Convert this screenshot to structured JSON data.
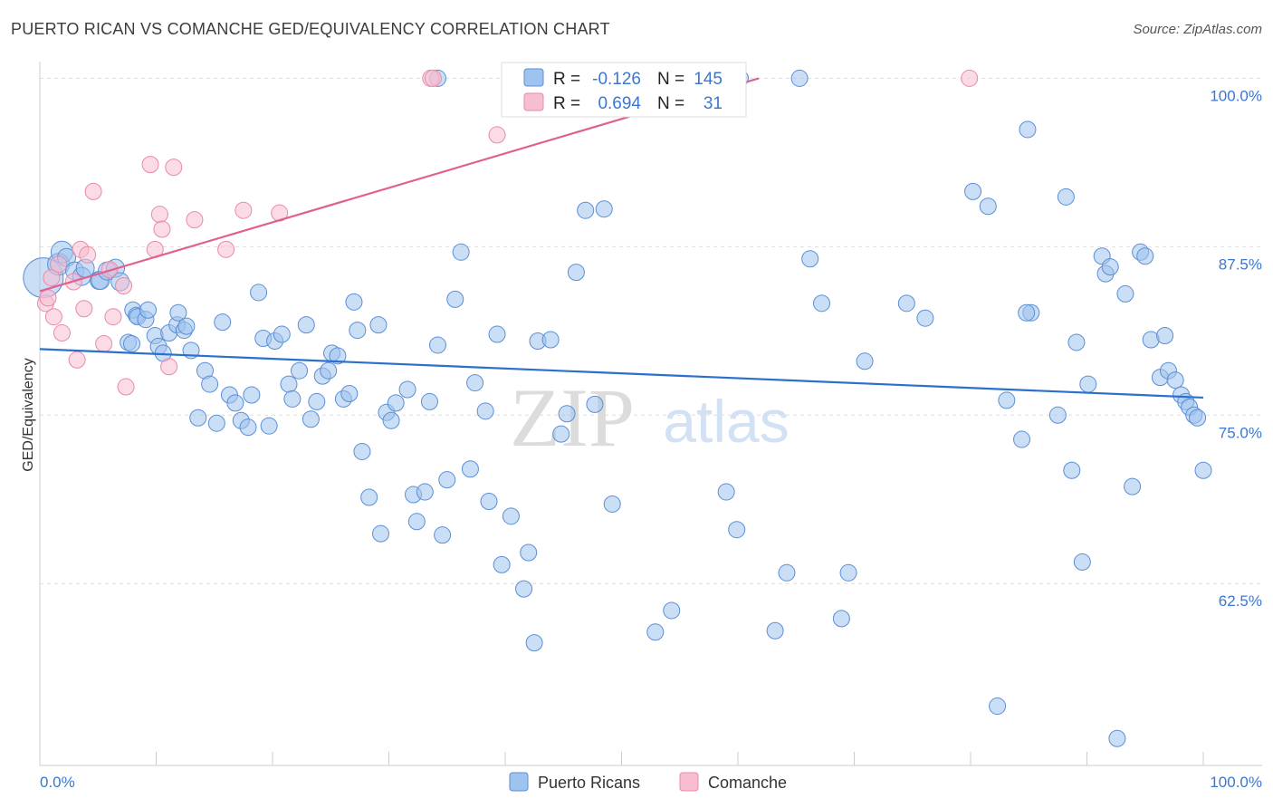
{
  "header": {
    "title": "PUERTO RICAN VS COMANCHE GED/EQUIVALENCY CORRELATION CHART",
    "source": "Source: ZipAtlas.com"
  },
  "watermark": {
    "zip": "ZIP",
    "atlas": "atlas"
  },
  "legend_box": {
    "rows": [
      {
        "r_label": "R =",
        "r_value": "-0.126",
        "n_label": "N =",
        "n_value": "145",
        "color": "#9ec3ef",
        "stroke": "#5a8fd6"
      },
      {
        "r_label": "R =",
        "r_value": "0.694",
        "n_label": "N =",
        "n_value": "31",
        "color": "#f7bdd0",
        "stroke": "#e98aa8"
      }
    ]
  },
  "bottom_legend": [
    {
      "label": "Puerto Ricans",
      "color": "#9ec3ef",
      "stroke": "#5a8fd6"
    },
    {
      "label": "Comanche",
      "color": "#f7bdd0",
      "stroke": "#e98aa8"
    }
  ],
  "chart_data": {
    "type": "scatter",
    "title": "PUERTO RICAN VS COMANCHE GED/EQUIVALENCY CORRELATION CHART",
    "xlabel": "",
    "ylabel": "GED/Equivalency",
    "xlim": [
      0,
      100
    ],
    "ylim": [
      49.0,
      100.5
    ],
    "x_tick_labels": [
      "0.0%",
      "100.0%"
    ],
    "y_ticks": [
      {
        "value": 62.5,
        "label": "62.5%"
      },
      {
        "value": 75.0,
        "label": "75.0%"
      },
      {
        "value": 87.5,
        "label": "87.5%"
      },
      {
        "value": 100.0,
        "label": "100.0%"
      }
    ],
    "grid": true,
    "legend_position": "bottom",
    "series": [
      {
        "name": "Puerto Ricans",
        "color": "#9ec3ef",
        "stroke": "#5a8fd6",
        "line_color": "#2c6fcd",
        "trend": [
          [
            0,
            79.9
          ],
          [
            100,
            76.3
          ]
        ],
        "points": [
          [
            0.3,
            85.2,
            22
          ],
          [
            1.6,
            86.2,
            12
          ],
          [
            1.9,
            87.1,
            12
          ],
          [
            2.3,
            86.7,
            10
          ],
          [
            3.0,
            85.7,
            10
          ],
          [
            3.6,
            85.3,
            10
          ],
          [
            3.9,
            85.9,
            10
          ],
          [
            5.1,
            85.0,
            10
          ],
          [
            5.2,
            85.0,
            10
          ],
          [
            5.8,
            85.7,
            10
          ],
          [
            6.5,
            85.9,
            10
          ],
          [
            6.9,
            84.9,
            10
          ],
          [
            7.6,
            80.4,
            9
          ],
          [
            7.9,
            80.3,
            9
          ],
          [
            8.0,
            82.8,
            9
          ],
          [
            8.3,
            82.4,
            9
          ],
          [
            8.4,
            82.3,
            9
          ],
          [
            9.1,
            82.1,
            9
          ],
          [
            9.3,
            82.8,
            9
          ],
          [
            9.9,
            80.9,
            9
          ],
          [
            10.2,
            80.1,
            9
          ],
          [
            10.6,
            79.6,
            9
          ],
          [
            11.1,
            81.1,
            9
          ],
          [
            11.8,
            81.7,
            9
          ],
          [
            11.9,
            82.6,
            9
          ],
          [
            12.4,
            81.3,
            9
          ],
          [
            12.6,
            81.6,
            9
          ],
          [
            13.0,
            79.8,
            9
          ],
          [
            13.6,
            74.8,
            9
          ],
          [
            14.2,
            78.3,
            9
          ],
          [
            14.6,
            77.3,
            9
          ],
          [
            15.2,
            74.4,
            9
          ],
          [
            15.7,
            81.9,
            9
          ],
          [
            16.3,
            76.5,
            9
          ],
          [
            16.8,
            75.9,
            9
          ],
          [
            17.3,
            74.6,
            9
          ],
          [
            17.9,
            74.1,
            9
          ],
          [
            18.2,
            76.5,
            9
          ],
          [
            18.8,
            84.1,
            9
          ],
          [
            19.2,
            80.7,
            9
          ],
          [
            19.7,
            74.2,
            9
          ],
          [
            20.2,
            80.5,
            9
          ],
          [
            20.8,
            81.0,
            9
          ],
          [
            21.4,
            77.3,
            9
          ],
          [
            21.7,
            76.2,
            9
          ],
          [
            22.3,
            78.3,
            9
          ],
          [
            22.9,
            81.7,
            9
          ],
          [
            23.3,
            74.7,
            9
          ],
          [
            23.8,
            76.0,
            9
          ],
          [
            24.3,
            77.9,
            9
          ],
          [
            24.8,
            78.3,
            9
          ],
          [
            25.1,
            79.6,
            9
          ],
          [
            25.6,
            79.4,
            9
          ],
          [
            26.1,
            76.2,
            9
          ],
          [
            26.6,
            76.6,
            9
          ],
          [
            27.0,
            83.4,
            9
          ],
          [
            27.3,
            81.3,
            9
          ],
          [
            27.7,
            72.3,
            9
          ],
          [
            28.3,
            68.9,
            9
          ],
          [
            29.1,
            81.7,
            9
          ],
          [
            29.3,
            66.2,
            9
          ],
          [
            29.8,
            75.2,
            9
          ],
          [
            30.2,
            74.6,
            9
          ],
          [
            30.6,
            75.9,
            9
          ],
          [
            31.6,
            76.9,
            9
          ],
          [
            32.1,
            69.1,
            9
          ],
          [
            32.4,
            67.1,
            9
          ],
          [
            33.1,
            69.3,
            9
          ],
          [
            33.5,
            76.0,
            9
          ],
          [
            34.2,
            80.2,
            9
          ],
          [
            34.6,
            66.1,
            9
          ],
          [
            35.0,
            70.2,
            9
          ],
          [
            35.7,
            83.6,
            9
          ],
          [
            36.2,
            87.1,
            9
          ],
          [
            37.0,
            71.0,
            9
          ],
          [
            37.4,
            77.4,
            9
          ],
          [
            38.3,
            75.3,
            9
          ],
          [
            38.6,
            68.6,
            9
          ],
          [
            39.3,
            81.0,
            9
          ],
          [
            39.7,
            63.9,
            9
          ],
          [
            40.5,
            67.5,
            9
          ],
          [
            41.6,
            62.1,
            9
          ],
          [
            42.0,
            64.8,
            9
          ],
          [
            42.5,
            58.1,
            9
          ],
          [
            42.8,
            80.5,
            9
          ],
          [
            43.9,
            80.6,
            9
          ],
          [
            44.8,
            73.6,
            9
          ],
          [
            45.3,
            75.1,
            9
          ],
          [
            46.1,
            85.6,
            9
          ],
          [
            46.9,
            90.2,
            9
          ],
          [
            47.7,
            75.8,
            9
          ],
          [
            48.5,
            90.3,
            9
          ],
          [
            49.2,
            68.4,
            9
          ],
          [
            52.9,
            58.9,
            9
          ],
          [
            54.3,
            60.5,
            9
          ],
          [
            59.0,
            69.3,
            9
          ],
          [
            59.9,
            66.5,
            9
          ],
          [
            60.2,
            100.0,
            9
          ],
          [
            63.2,
            59.0,
            9
          ],
          [
            64.2,
            63.3,
            9
          ],
          [
            65.3,
            100.0,
            9
          ],
          [
            66.2,
            86.6,
            9
          ],
          [
            67.2,
            83.3,
            9
          ],
          [
            68.9,
            59.9,
            9
          ],
          [
            69.5,
            63.3,
            9
          ],
          [
            70.9,
            79.0,
            9
          ],
          [
            74.5,
            83.3,
            9
          ],
          [
            76.1,
            82.2,
            9
          ],
          [
            80.2,
            91.6,
            9
          ],
          [
            81.5,
            90.5,
            9
          ],
          [
            82.3,
            53.4,
            9
          ],
          [
            83.1,
            76.1,
            9
          ],
          [
            84.4,
            73.2,
            9
          ],
          [
            84.9,
            96.2,
            9
          ],
          [
            85.2,
            82.6,
            9
          ],
          [
            87.5,
            75.0,
            9
          ],
          [
            88.2,
            91.2,
            9
          ],
          [
            88.7,
            70.9,
            9
          ],
          [
            89.1,
            80.4,
            9
          ],
          [
            89.6,
            64.1,
            9
          ],
          [
            90.1,
            77.3,
            9
          ],
          [
            91.3,
            86.8,
            9
          ],
          [
            91.6,
            85.5,
            9
          ],
          [
            92.0,
            86.0,
            9
          ],
          [
            92.6,
            51.0,
            9
          ],
          [
            93.3,
            84.0,
            9
          ],
          [
            93.9,
            69.7,
            9
          ],
          [
            94.6,
            87.1,
            9
          ],
          [
            95.0,
            86.8,
            9
          ],
          [
            95.5,
            80.6,
            9
          ],
          [
            96.3,
            77.8,
            9
          ],
          [
            96.7,
            80.9,
            9
          ],
          [
            97.0,
            78.3,
            9
          ],
          [
            97.6,
            77.6,
            9
          ],
          [
            98.1,
            76.5,
            9
          ],
          [
            98.5,
            76.0,
            9
          ],
          [
            98.8,
            75.6,
            9
          ],
          [
            99.2,
            75.0,
            9
          ],
          [
            99.5,
            74.8,
            9
          ],
          [
            100.0,
            70.9,
            9
          ],
          [
            34.2,
            100.0,
            9
          ],
          [
            56.2,
            100.0,
            9
          ],
          [
            57.4,
            100.0,
            9
          ],
          [
            53.6,
            100.0,
            9
          ],
          [
            84.8,
            82.6,
            9
          ]
        ]
      },
      {
        "name": "Comanche",
        "color": "#f7bdd0",
        "stroke": "#e98aa8",
        "line_color": "#e0608f",
        "trend": [
          [
            0,
            84.2
          ],
          [
            61.8,
            100.0
          ]
        ],
        "points": [
          [
            0.5,
            83.3,
            9
          ],
          [
            0.7,
            83.7,
            9
          ],
          [
            1.0,
            85.2,
            9
          ],
          [
            1.2,
            82.3,
            9
          ],
          [
            1.6,
            86.2,
            9
          ],
          [
            1.9,
            81.1,
            9
          ],
          [
            2.9,
            84.9,
            9
          ],
          [
            3.2,
            79.1,
            9
          ],
          [
            3.5,
            87.3,
            9
          ],
          [
            3.8,
            82.9,
            9
          ],
          [
            4.1,
            86.9,
            9
          ],
          [
            4.6,
            91.6,
            9
          ],
          [
            5.5,
            80.3,
            9
          ],
          [
            6.0,
            85.8,
            9
          ],
          [
            6.3,
            82.3,
            9
          ],
          [
            7.2,
            84.6,
            9
          ],
          [
            7.4,
            77.1,
            9
          ],
          [
            9.5,
            93.6,
            9
          ],
          [
            9.9,
            87.3,
            9
          ],
          [
            10.3,
            89.9,
            9
          ],
          [
            10.5,
            88.8,
            9
          ],
          [
            11.1,
            78.6,
            9
          ],
          [
            11.5,
            93.4,
            9
          ],
          [
            13.3,
            89.5,
            9
          ],
          [
            16.0,
            87.3,
            9
          ],
          [
            17.5,
            90.2,
            9
          ],
          [
            20.6,
            90.0,
            9
          ],
          [
            33.6,
            100.0,
            9
          ],
          [
            39.3,
            95.8,
            9
          ],
          [
            33.8,
            100.0,
            9
          ],
          [
            79.9,
            100.0,
            9
          ]
        ]
      }
    ]
  }
}
